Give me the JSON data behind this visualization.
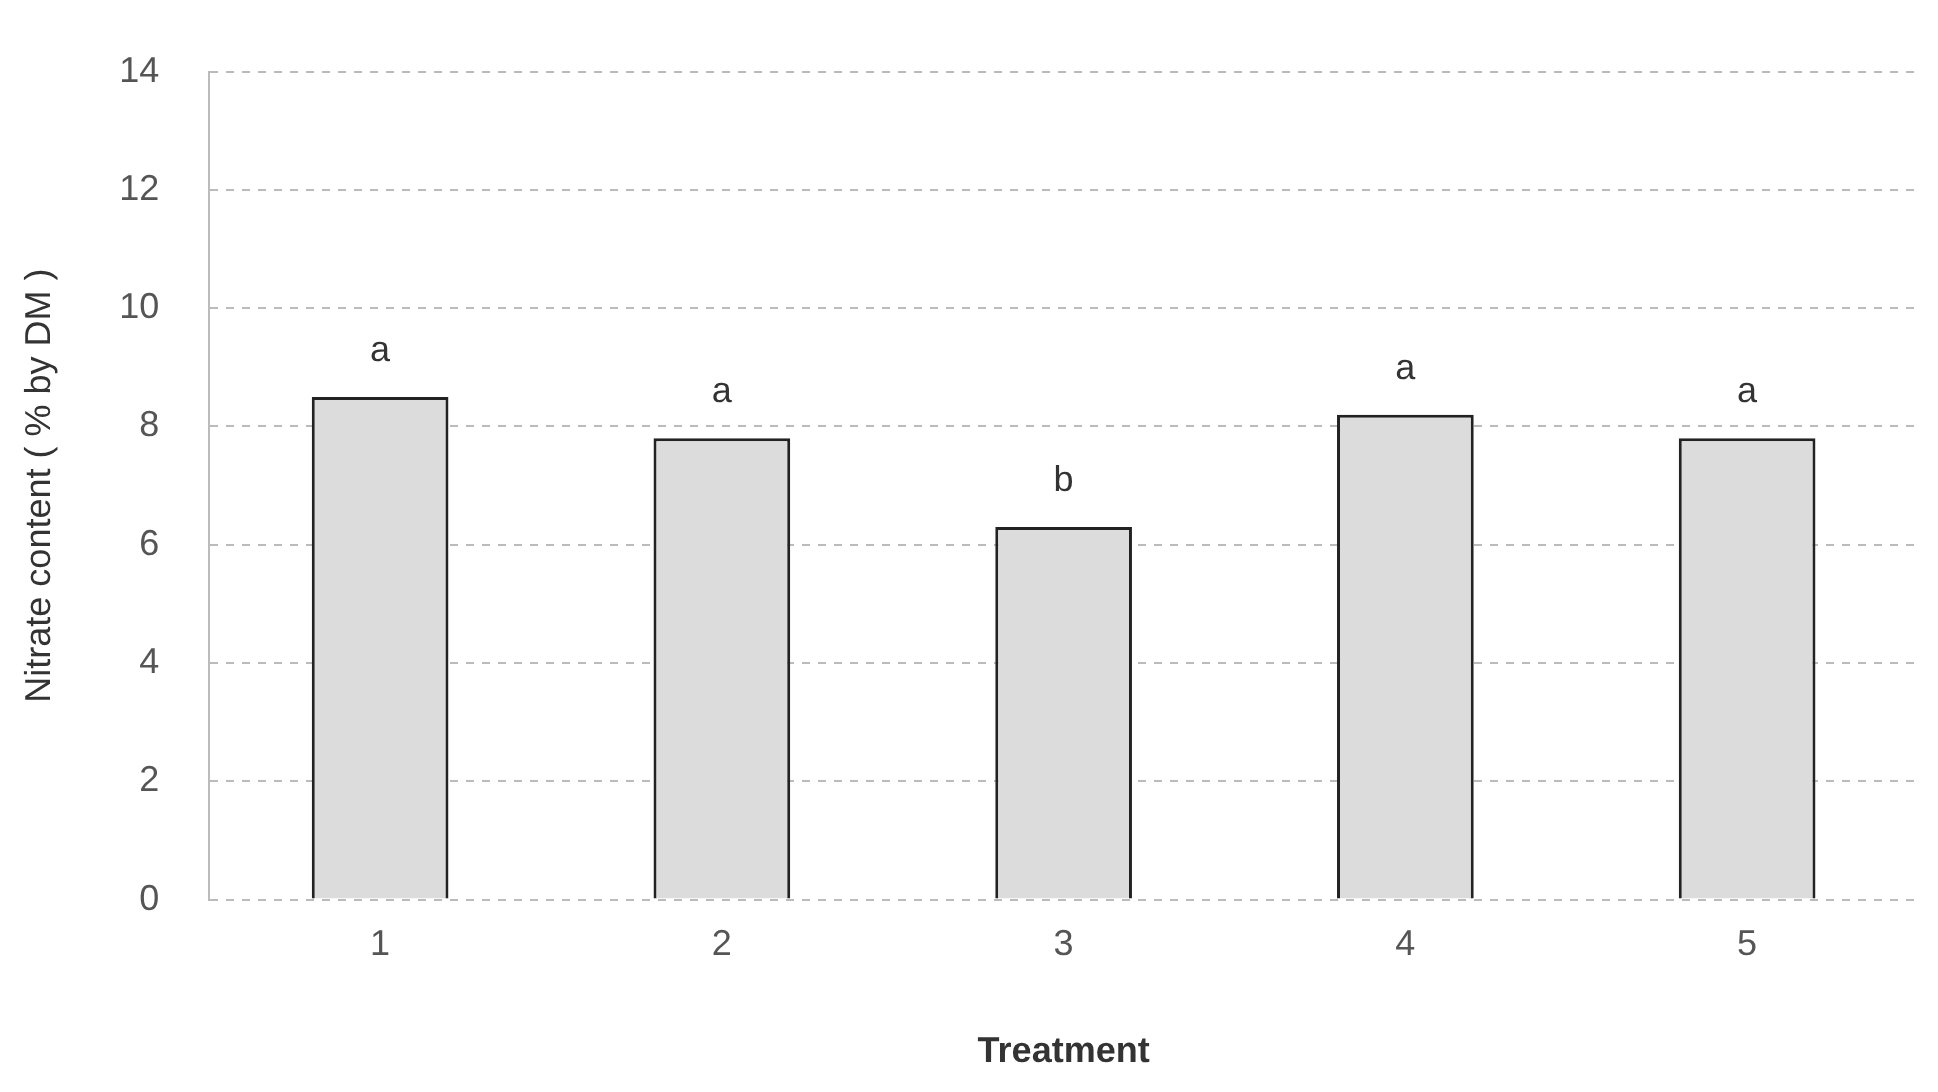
{
  "chart_data": {
    "type": "bar",
    "xlabel": "Treatment",
    "ylabel": "Nitrate content ( % by DM )",
    "categories": [
      "1",
      "2",
      "3",
      "4",
      "5"
    ],
    "values": [
      8.5,
      7.8,
      6.3,
      8.2,
      7.8
    ],
    "color": "#dcdcdc",
    "ylim": [
      0,
      14
    ],
    "yticks": [
      0,
      2,
      4,
      6,
      8,
      10,
      12,
      14
    ],
    "grid": "y",
    "annotations": [
      {
        "text": "a",
        "x": "1",
        "y": 8.5
      },
      {
        "text": "a",
        "x": "2",
        "y": 7.8
      },
      {
        "text": "b",
        "x": "3",
        "y": 6.3
      },
      {
        "text": "a",
        "x": "4",
        "y": 8.2
      },
      {
        "text": "a",
        "x": "5",
        "y": 7.8
      }
    ]
  }
}
